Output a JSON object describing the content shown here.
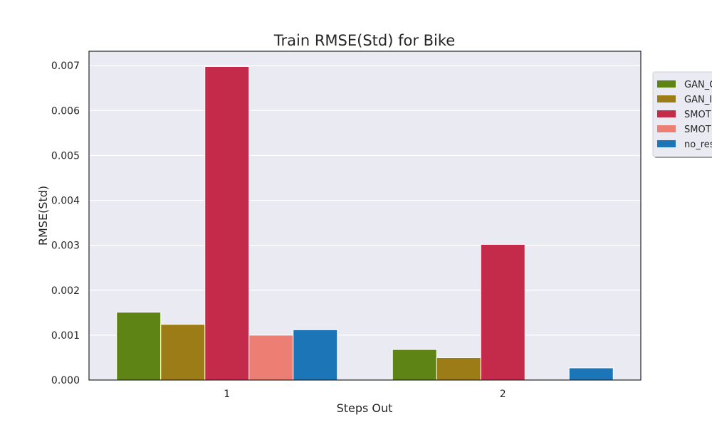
{
  "chart_data": {
    "type": "bar",
    "title": "Train RMSE(Std) for Bike",
    "xlabel": "Steps Out",
    "ylabel": "RMSE(Std)",
    "categories": [
      "1",
      "2"
    ],
    "ylim": [
      0,
      0.00732
    ],
    "yticks": [
      "0.000",
      "0.001",
      "0.002",
      "0.003",
      "0.004",
      "0.005",
      "0.006",
      "0.007"
    ],
    "grid": true,
    "legend_position": "right, clipped at edge",
    "background_color": "#eaeaf2",
    "series": [
      {
        "name": "GAN_C",
        "color": "#5f8416",
        "values": [
          0.00151,
          0.00068
        ]
      },
      {
        "name": "GAN_I",
        "color": "#9c7c17",
        "values": [
          0.00124,
          0.0005
        ]
      },
      {
        "name": "SMOT",
        "color": "#c42b4a",
        "values": [
          0.00698,
          0.00302
        ]
      },
      {
        "name": "SMOT",
        "color": "#ec7e74",
        "values": [
          0.001,
          0.0
        ]
      },
      {
        "name": "no_res",
        "color": "#1b75b7",
        "values": [
          0.00112,
          0.00027
        ]
      }
    ]
  }
}
